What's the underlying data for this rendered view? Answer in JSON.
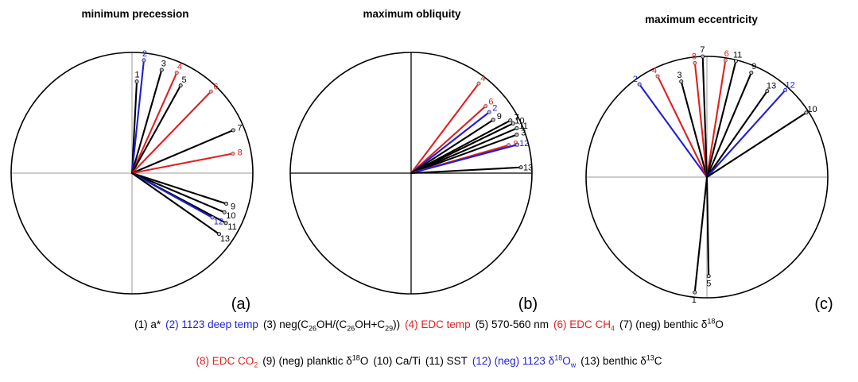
{
  "colors": {
    "black": "#000000",
    "blue": "#1f1fd6",
    "red": "#e02020",
    "axis": "#9a9a9a"
  },
  "panels": [
    {
      "key": "a",
      "title": "minimum precession",
      "label": "(a)"
    },
    {
      "key": "b",
      "title": "maximum obliquity",
      "label": "(b)"
    },
    {
      "key": "c",
      "title": "maximum eccentricity",
      "label": "(c)"
    }
  ],
  "legend": {
    "line1": [
      {
        "id": 1,
        "color": "black",
        "parts": [
          [
            "(1) a*",
            ""
          ]
        ]
      },
      {
        "id": 2,
        "color": "blue",
        "parts": [
          [
            "(2) 1123 deep temp",
            ""
          ]
        ]
      },
      {
        "id": 3,
        "color": "black",
        "parts": [
          [
            "(3) neg(C",
            ""
          ],
          [
            "26",
            "sub"
          ],
          [
            "OH/(C",
            ""
          ],
          [
            "26",
            "sub"
          ],
          [
            "OH+C",
            ""
          ],
          [
            "29",
            "sub"
          ],
          [
            "))",
            ""
          ]
        ]
      },
      {
        "id": 4,
        "color": "red",
        "parts": [
          [
            "(4) EDC temp",
            ""
          ]
        ]
      },
      {
        "id": 5,
        "color": "black",
        "parts": [
          [
            "(5) 570-560 nm",
            ""
          ]
        ]
      },
      {
        "id": 6,
        "color": "red",
        "parts": [
          [
            "(6) EDC CH",
            ""
          ],
          [
            "4",
            "sub"
          ]
        ]
      },
      {
        "id": 7,
        "color": "black",
        "parts": [
          [
            "(7) (neg) benthic δ",
            ""
          ],
          [
            "18",
            "sup"
          ],
          [
            "O",
            ""
          ]
        ]
      }
    ],
    "line2": [
      {
        "id": 8,
        "color": "red",
        "parts": [
          [
            "(8) EDC CO",
            ""
          ],
          [
            "2",
            "sub"
          ]
        ]
      },
      {
        "id": 9,
        "color": "black",
        "parts": [
          [
            "(9) (neg) planktic δ",
            ""
          ],
          [
            "18",
            "sup"
          ],
          [
            "O",
            ""
          ]
        ]
      },
      {
        "id": 10,
        "color": "black",
        "parts": [
          [
            "(10) Ca/Ti",
            ""
          ]
        ]
      },
      {
        "id": 11,
        "color": "black",
        "parts": [
          [
            "(11) SST",
            ""
          ]
        ]
      },
      {
        "id": 12,
        "color": "blue",
        "parts": [
          [
            "(12) (neg) 1123 δ",
            ""
          ],
          [
            "18",
            "sup"
          ],
          [
            "O",
            ""
          ],
          [
            "w",
            "sub"
          ]
        ]
      },
      {
        "id": 13,
        "color": "black",
        "parts": [
          [
            "(13) benthic δ",
            ""
          ],
          [
            "13",
            "sup"
          ],
          [
            "C",
            ""
          ]
        ]
      }
    ]
  },
  "chart_data": [
    {
      "type": "phase-wheel",
      "title": "minimum precession",
      "panel_label": "(a)",
      "grid": true,
      "vectors": [
        {
          "id": "1",
          "color": "black",
          "angle_deg": 87,
          "magnitude": 0.76
        },
        {
          "id": "2",
          "color": "blue",
          "angle_deg": 84,
          "magnitude": 0.94
        },
        {
          "id": "3",
          "color": "black",
          "angle_deg": 74,
          "magnitude": 0.89
        },
        {
          "id": "4",
          "color": "red",
          "angle_deg": 66,
          "magnitude": 0.91
        },
        {
          "id": "5",
          "color": "black",
          "angle_deg": 61,
          "magnitude": 0.83
        },
        {
          "id": "6",
          "color": "red",
          "angle_deg": 46,
          "magnitude": 0.94
        },
        {
          "id": "7",
          "color": "black",
          "angle_deg": 23,
          "magnitude": 0.91
        },
        {
          "id": "8",
          "color": "red",
          "angle_deg": 11,
          "magnitude": 0.85
        },
        {
          "id": "9",
          "color": "black",
          "angle_deg": -18,
          "magnitude": 0.82
        },
        {
          "id": "10",
          "color": "black",
          "angle_deg": -23,
          "magnitude": 0.83
        },
        {
          "id": "11",
          "color": "black",
          "angle_deg": -28,
          "magnitude": 0.88
        },
        {
          "id": "12",
          "color": "blue",
          "angle_deg": -29,
          "magnitude": 0.76
        },
        {
          "id": "13",
          "color": "black",
          "angle_deg": -35,
          "magnitude": 0.88
        }
      ]
    },
    {
      "type": "phase-wheel",
      "title": "maximum obliquity",
      "panel_label": "(b)",
      "grid": true,
      "vectors": [
        {
          "id": "4",
          "color": "red",
          "angle_deg": 53,
          "magnitude": 0.93
        },
        {
          "id": "6",
          "color": "red",
          "angle_deg": 42,
          "magnitude": 0.83
        },
        {
          "id": "2",
          "color": "blue",
          "angle_deg": 38,
          "magnitude": 0.82
        },
        {
          "id": "9",
          "color": "black",
          "angle_deg": 33,
          "magnitude": 0.81
        },
        {
          "id": "7",
          "color": "black",
          "angle_deg": 28,
          "magnitude": 0.93
        },
        {
          "id": "10",
          "color": "black",
          "angle_deg": 26,
          "magnitude": 0.94
        },
        {
          "id": "11",
          "color": "black",
          "angle_deg": 23,
          "magnitude": 0.95
        },
        {
          "id": "3",
          "color": "black",
          "angle_deg": 20,
          "magnitude": 0.93
        },
        {
          "id": "8",
          "color": "red",
          "angle_deg": 16,
          "magnitude": 0.84
        },
        {
          "id": "12",
          "color": "blue",
          "angle_deg": 15,
          "magnitude": 0.91
        },
        {
          "id": "13",
          "color": "black",
          "angle_deg": 3,
          "magnitude": 0.91
        }
      ]
    },
    {
      "type": "phase-wheel",
      "title": "maximum eccentricity",
      "panel_label": "(c)",
      "grid": true,
      "vectors": [
        {
          "id": "2",
          "color": "blue",
          "angle_deg": 126,
          "magnitude": 0.95
        },
        {
          "id": "4",
          "color": "red",
          "angle_deg": 116,
          "magnitude": 0.93
        },
        {
          "id": "3",
          "color": "black",
          "angle_deg": 105,
          "magnitude": 0.82
        },
        {
          "id": "8",
          "color": "red",
          "angle_deg": 96,
          "magnitude": 0.95
        },
        {
          "id": "7",
          "color": "black",
          "angle_deg": 92,
          "magnitude": 1.0
        },
        {
          "id": "6",
          "color": "red",
          "angle_deg": 81,
          "magnitude": 0.98
        },
        {
          "id": "11",
          "color": "black",
          "angle_deg": 76,
          "magnitude": 0.99
        },
        {
          "id": "9",
          "color": "black",
          "angle_deg": 67,
          "magnitude": 0.94
        },
        {
          "id": "13",
          "color": "black",
          "angle_deg": 55,
          "magnitude": 0.87
        },
        {
          "id": "12",
          "color": "blue",
          "angle_deg": 48,
          "magnitude": 0.97
        },
        {
          "id": "10",
          "color": "black",
          "angle_deg": 33,
          "magnitude": 0.98
        },
        {
          "id": "1",
          "color": "black",
          "angle_deg": -96,
          "magnitude": 0.96
        },
        {
          "id": "5",
          "color": "black",
          "angle_deg": -89,
          "magnitude": 0.82
        }
      ]
    }
  ]
}
